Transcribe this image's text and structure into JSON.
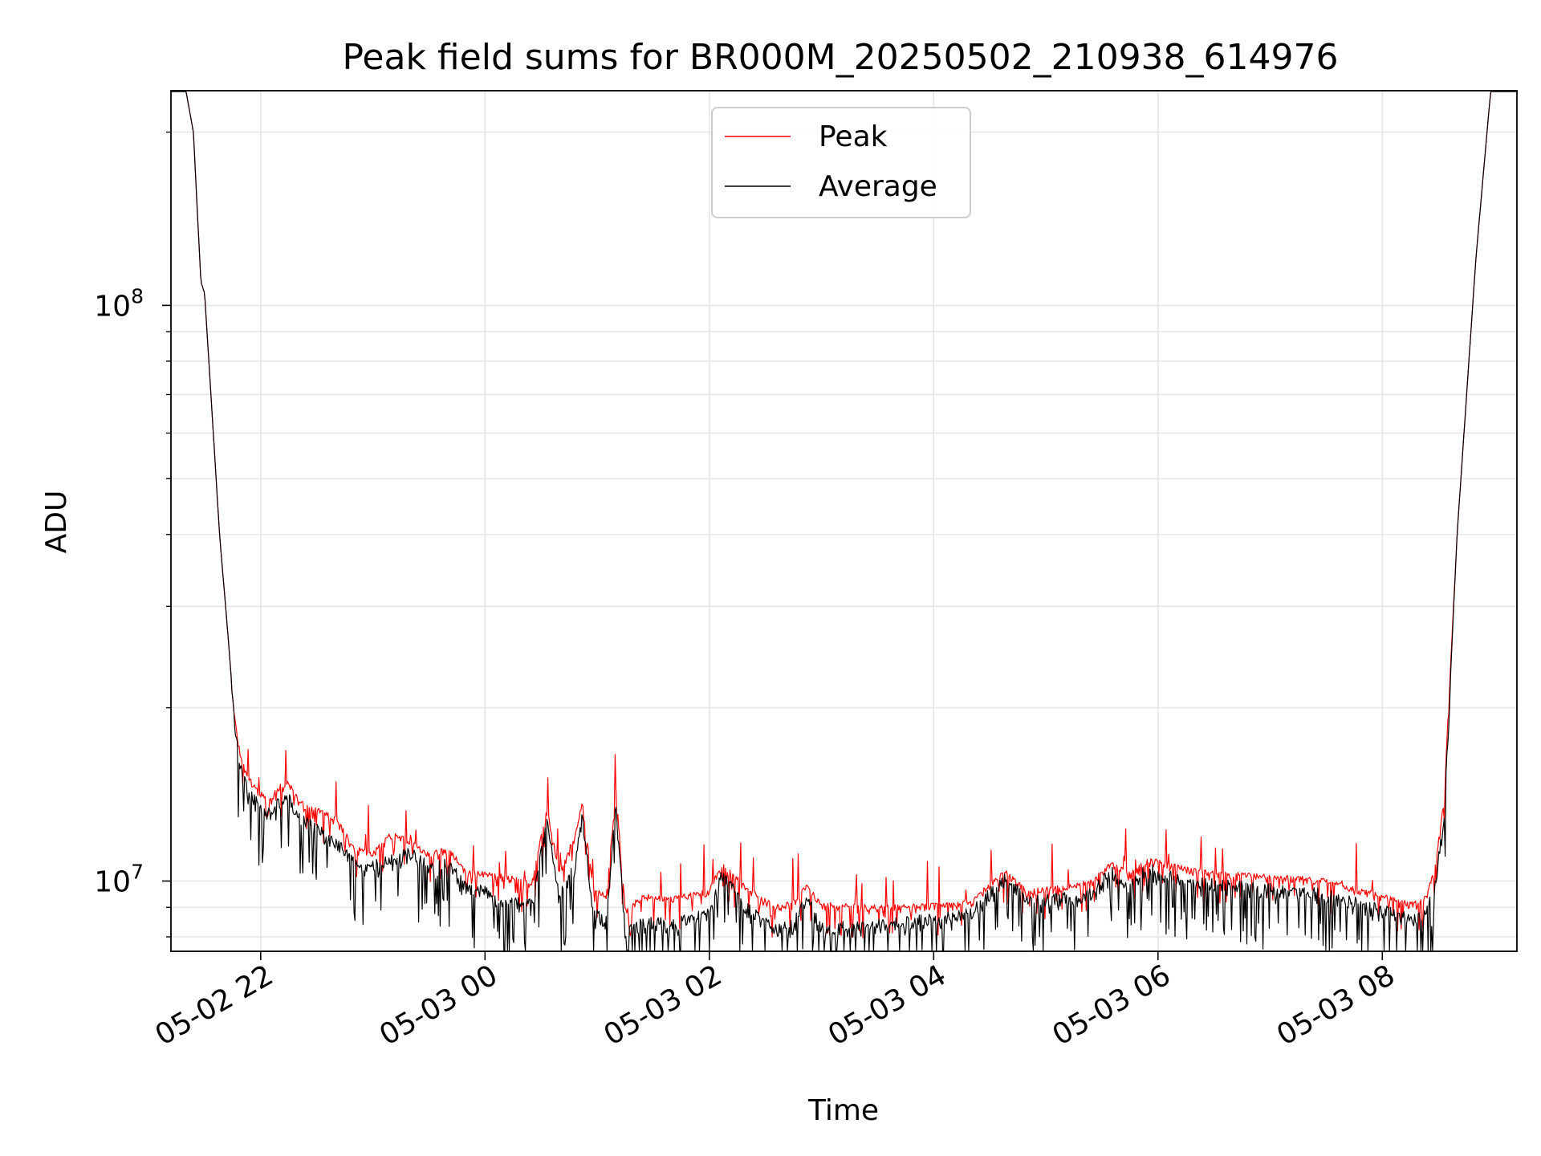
{
  "chart_data": {
    "type": "line",
    "title": "Peak field sums for BR000M_20250502_210938_614976",
    "xlabel": "Time",
    "ylabel": "ADU",
    "xscale": "time",
    "yscale": "log",
    "xlim": [
      "2025-05-02T21:12",
      "2025-05-03T09:12"
    ],
    "ylim": [
      7550000,
      236000000
    ],
    "grid": true,
    "legend_position": "top-center",
    "x_ticks": [
      {
        "t": "2025-05-02T22:00",
        "label": "05-02 22"
      },
      {
        "t": "2025-05-03T00:00",
        "label": "05-03 00"
      },
      {
        "t": "2025-05-03T02:00",
        "label": "05-03 02"
      },
      {
        "t": "2025-05-03T04:00",
        "label": "05-03 04"
      },
      {
        "t": "2025-05-03T06:00",
        "label": "05-03 06"
      },
      {
        "t": "2025-05-03T08:00",
        "label": "05-03 08"
      }
    ],
    "y_major_ticks": [
      {
        "value": 10000000,
        "base": "10",
        "exp": "7"
      },
      {
        "value": 100000000,
        "base": "10",
        "exp": "8"
      }
    ],
    "y_minor_ticks": [
      8000000,
      9000000,
      20000000,
      30000000,
      40000000,
      50000000,
      60000000,
      70000000,
      80000000,
      90000000,
      200000000
    ],
    "series": [
      {
        "name": "Peak",
        "color": "#ff0000",
        "noise": [
          0.02,
          0.06
        ],
        "points": [
          [
            "2025-05-02T21:12",
            236000000
          ],
          [
            "2025-05-02T21:20",
            236000000
          ],
          [
            "2025-05-02T21:24",
            200000000
          ],
          [
            "2025-05-02T21:28",
            110000000
          ],
          [
            "2025-05-02T21:30",
            105000000
          ],
          [
            "2025-05-02T21:34",
            65000000
          ],
          [
            "2025-05-02T21:38",
            40000000
          ],
          [
            "2025-05-02T21:42",
            28000000
          ],
          [
            "2025-05-02T21:45",
            21000000
          ],
          [
            "2025-05-02T21:48",
            17500000
          ],
          [
            "2025-05-02T21:52",
            15500000
          ],
          [
            "2025-05-02T21:58",
            14500000
          ],
          [
            "2025-05-02T22:05",
            14000000
          ],
          [
            "2025-05-02T22:10",
            14800000
          ],
          [
            "2025-05-02T22:15",
            15000000
          ],
          [
            "2025-05-02T22:20",
            14000000
          ],
          [
            "2025-05-02T22:30",
            13400000
          ],
          [
            "2025-05-02T22:40",
            13000000
          ],
          [
            "2025-05-02T22:50",
            11500000
          ],
          [
            "2025-05-02T23:00",
            11300000
          ],
          [
            "2025-05-02T23:10",
            12200000
          ],
          [
            "2025-05-02T23:20",
            11800000
          ],
          [
            "2025-05-02T23:30",
            11200000
          ],
          [
            "2025-05-02T23:40",
            11500000
          ],
          [
            "2025-05-02T23:50",
            10500000
          ],
          [
            "2025-05-03T00:00",
            10400000
          ],
          [
            "2025-05-03T00:15",
            10200000
          ],
          [
            "2025-05-03T00:25",
            10000000
          ],
          [
            "2025-05-03T00:33",
            13500000
          ],
          [
            "2025-05-03T00:40",
            10500000
          ],
          [
            "2025-05-03T00:48",
            12000000
          ],
          [
            "2025-05-03T00:52",
            13800000
          ],
          [
            "2025-05-03T00:58",
            9800000
          ],
          [
            "2025-05-03T01:05",
            9500000
          ],
          [
            "2025-05-03T01:10",
            14500000
          ],
          [
            "2025-05-03T01:15",
            9000000
          ],
          [
            "2025-05-03T01:25",
            9500000
          ],
          [
            "2025-05-03T01:40",
            9400000
          ],
          [
            "2025-05-03T02:00",
            9700000
          ],
          [
            "2025-05-03T02:07",
            10900000
          ],
          [
            "2025-05-03T02:20",
            9800000
          ],
          [
            "2025-05-03T02:35",
            9100000
          ],
          [
            "2025-05-03T02:45",
            9300000
          ],
          [
            "2025-05-03T02:52",
            9900000
          ],
          [
            "2025-05-03T03:00",
            9200000
          ],
          [
            "2025-05-03T03:30",
            9100000
          ],
          [
            "2025-05-03T04:00",
            9150000
          ],
          [
            "2025-05-03T04:20",
            9300000
          ],
          [
            "2025-05-03T04:38",
            10500000
          ],
          [
            "2025-05-03T04:50",
            9700000
          ],
          [
            "2025-05-03T05:15",
            9900000
          ],
          [
            "2025-05-03T05:25",
            10100000
          ],
          [
            "2025-05-03T05:35",
            10800000
          ],
          [
            "2025-05-03T05:45",
            10400000
          ],
          [
            "2025-05-03T05:55",
            11000000
          ],
          [
            "2025-05-03T06:10",
            10700000
          ],
          [
            "2025-05-03T06:30",
            10400000
          ],
          [
            "2025-05-03T07:00",
            10300000
          ],
          [
            "2025-05-03T07:30",
            10100000
          ],
          [
            "2025-05-03T07:55",
            9600000
          ],
          [
            "2025-05-03T08:15",
            9200000
          ],
          [
            "2025-05-03T08:22",
            9300000
          ],
          [
            "2025-05-03T08:28",
            10500000
          ],
          [
            "2025-05-03T08:33",
            14000000
          ],
          [
            "2025-05-03T08:40",
            40000000
          ],
          [
            "2025-05-03T08:50",
            120000000
          ],
          [
            "2025-05-03T08:56",
            200000000
          ],
          [
            "2025-05-03T08:58",
            236000000
          ],
          [
            "2025-05-03T09:12",
            236000000
          ]
        ]
      },
      {
        "name": "Average",
        "color": "#000000",
        "noise": [
          0.06,
          0.12
        ],
        "points": [
          [
            "2025-05-02T21:12",
            236000000
          ],
          [
            "2025-05-02T21:20",
            236000000
          ],
          [
            "2025-05-02T21:24",
            200000000
          ],
          [
            "2025-05-02T21:28",
            110000000
          ],
          [
            "2025-05-02T21:30",
            105000000
          ],
          [
            "2025-05-02T21:34",
            65000000
          ],
          [
            "2025-05-02T21:38",
            40000000
          ],
          [
            "2025-05-02T21:42",
            28000000
          ],
          [
            "2025-05-02T21:45",
            21000000
          ],
          [
            "2025-05-02T21:48",
            17000000
          ],
          [
            "2025-05-02T21:52",
            15000000
          ],
          [
            "2025-05-02T21:58",
            14000000
          ],
          [
            "2025-05-02T22:05",
            13500000
          ],
          [
            "2025-05-02T22:10",
            14000000
          ],
          [
            "2025-05-02T22:15",
            14200000
          ],
          [
            "2025-05-02T22:20",
            13200000
          ],
          [
            "2025-05-02T22:30",
            12600000
          ],
          [
            "2025-05-02T22:40",
            12000000
          ],
          [
            "2025-05-02T22:50",
            11000000
          ],
          [
            "2025-05-02T23:00",
            10900000
          ],
          [
            "2025-05-02T23:10",
            11200000
          ],
          [
            "2025-05-02T23:20",
            11500000
          ],
          [
            "2025-05-02T23:30",
            10800000
          ],
          [
            "2025-05-02T23:40",
            11000000
          ],
          [
            "2025-05-02T23:50",
            10000000
          ],
          [
            "2025-05-03T00:00",
            9800000
          ],
          [
            "2025-05-03T00:15",
            9500000
          ],
          [
            "2025-05-03T00:25",
            9300000
          ],
          [
            "2025-05-03T00:33",
            13000000
          ],
          [
            "2025-05-03T00:40",
            9600000
          ],
          [
            "2025-05-03T00:48",
            11000000
          ],
          [
            "2025-05-03T00:52",
            13300000
          ],
          [
            "2025-05-03T00:58",
            9000000
          ],
          [
            "2025-05-03T01:05",
            8700000
          ],
          [
            "2025-05-03T01:10",
            14000000
          ],
          [
            "2025-05-03T01:15",
            8300000
          ],
          [
            "2025-05-03T01:25",
            8700000
          ],
          [
            "2025-05-03T01:40",
            8600000
          ],
          [
            "2025-05-03T02:00",
            9000000
          ],
          [
            "2025-05-03T02:07",
            10600000
          ],
          [
            "2025-05-03T02:20",
            9200000
          ],
          [
            "2025-05-03T02:35",
            8400000
          ],
          [
            "2025-05-03T02:45",
            8600000
          ],
          [
            "2025-05-03T02:52",
            9600000
          ],
          [
            "2025-05-03T03:00",
            8500000
          ],
          [
            "2025-05-03T03:30",
            8600000
          ],
          [
            "2025-05-03T04:00",
            8800000
          ],
          [
            "2025-05-03T04:20",
            9000000
          ],
          [
            "2025-05-03T04:38",
            10400000
          ],
          [
            "2025-05-03T04:50",
            9400000
          ],
          [
            "2025-05-03T05:15",
            9600000
          ],
          [
            "2025-05-03T05:25",
            9800000
          ],
          [
            "2025-05-03T05:35",
            10600000
          ],
          [
            "2025-05-03T05:45",
            10100000
          ],
          [
            "2025-05-03T05:55",
            10800000
          ],
          [
            "2025-05-03T06:10",
            10300000
          ],
          [
            "2025-05-03T06:30",
            10100000
          ],
          [
            "2025-05-03T07:00",
            9900000
          ],
          [
            "2025-05-03T07:30",
            9700000
          ],
          [
            "2025-05-03T07:55",
            9200000
          ],
          [
            "2025-05-03T08:15",
            8800000
          ],
          [
            "2025-05-03T08:22",
            8900000
          ],
          [
            "2025-05-03T08:28",
            10000000
          ],
          [
            "2025-05-03T08:33",
            13000000
          ],
          [
            "2025-05-03T08:40",
            40000000
          ],
          [
            "2025-05-03T08:50",
            120000000
          ],
          [
            "2025-05-03T08:56",
            200000000
          ],
          [
            "2025-05-03T08:58",
            236000000
          ],
          [
            "2025-05-03T09:12",
            236000000
          ]
        ]
      }
    ]
  }
}
